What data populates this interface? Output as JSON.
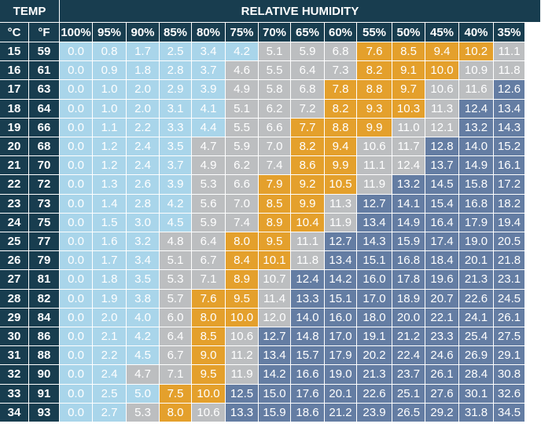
{
  "header": {
    "temp_label": "TEMP",
    "humidity_label": "RELATIVE HUMIDITY"
  },
  "colors": {
    "header": "#183d4f",
    "light_blue": "#a9d5ea",
    "gray": "#bcbec0",
    "orange": "#e4a02c",
    "slate_blue": "#647da3",
    "text": "#ffffff"
  },
  "chart_data": {
    "type": "table",
    "column_headers": [
      "°C",
      "°F",
      "100%",
      "95%",
      "90%",
      "85%",
      "80%",
      "75%",
      "70%",
      "65%",
      "60%",
      "55%",
      "50%",
      "45%",
      "40%",
      "35%"
    ],
    "rows": [
      {
        "c": "15",
        "f": "59",
        "values": [
          "0.0",
          "0.8",
          "1.7",
          "2.5",
          "3.4",
          "4.2",
          "5.1",
          "5.9",
          "6.8",
          "7.6",
          "8.5",
          "9.4",
          "10.2",
          "11.1"
        ],
        "colors": "LLLLLLGGGOOOOG"
      },
      {
        "c": "16",
        "f": "61",
        "values": [
          "0.0",
          "0.9",
          "1.8",
          "2.8",
          "3.7",
          "4.6",
          "5.5",
          "6.4",
          "7.3",
          "8.2",
          "9.1",
          "10.0",
          "10.9",
          "11.8"
        ],
        "colors": "LLLLLGGGGOOOGG"
      },
      {
        "c": "17",
        "f": "63",
        "values": [
          "0.0",
          "1.0",
          "2.0",
          "2.9",
          "3.9",
          "4.9",
          "5.8",
          "6.8",
          "7.8",
          "8.8",
          "9.7",
          "10.6",
          "11.6",
          "12.6"
        ],
        "colors": "LLLLLGGGOOOGGS"
      },
      {
        "c": "18",
        "f": "64",
        "values": [
          "0.0",
          "1.0",
          "2.0",
          "3.1",
          "4.1",
          "5.1",
          "6.2",
          "7.2",
          "8.2",
          "9.3",
          "10.3",
          "11.3",
          "12.4",
          "13.4"
        ],
        "colors": "LLLLLGGGOOOGSS"
      },
      {
        "c": "19",
        "f": "66",
        "values": [
          "0.0",
          "1.1",
          "2.2",
          "3.3",
          "4.4",
          "5.5",
          "6.6",
          "7.7",
          "8.8",
          "9.9",
          "11.0",
          "12.1",
          "13.2",
          "14.3"
        ],
        "colors": "LLLLLGGOOOGGSS"
      },
      {
        "c": "20",
        "f": "68",
        "values": [
          "0.0",
          "1.2",
          "2.4",
          "3.5",
          "4.7",
          "5.9",
          "7.0",
          "8.2",
          "9.4",
          "10.6",
          "11.7",
          "12.8",
          "14.0",
          "15.2"
        ],
        "colors": "LLLLGGGOOGGSSS"
      },
      {
        "c": "21",
        "f": "70",
        "values": [
          "0.0",
          "1.2",
          "2.4",
          "3.7",
          "4.9",
          "6.2",
          "7.4",
          "8.6",
          "9.9",
          "11.1",
          "12.4",
          "13.7",
          "14.9",
          "16.1"
        ],
        "colors": "LLLLGGGOOGGSSS"
      },
      {
        "c": "22",
        "f": "72",
        "values": [
          "0.0",
          "1.3",
          "2.6",
          "3.9",
          "5.3",
          "6.6",
          "7.9",
          "9.2",
          "10.5",
          "11.9",
          "13.2",
          "14.5",
          "15.8",
          "17.2"
        ],
        "colors": "LLLLGGOOOGSSSS"
      },
      {
        "c": "23",
        "f": "73",
        "values": [
          "0.0",
          "1.4",
          "2.8",
          "4.2",
          "5.6",
          "7.0",
          "8.5",
          "9.9",
          "11.3",
          "12.7",
          "14.1",
          "15.4",
          "16.8",
          "18.2"
        ],
        "colors": "LLLLGGOOGSSSSS"
      },
      {
        "c": "24",
        "f": "75",
        "values": [
          "0.0",
          "1.5",
          "3.0",
          "4.5",
          "5.9",
          "7.4",
          "8.9",
          "10.4",
          "11.9",
          "13.4",
          "14.9",
          "16.4",
          "17.9",
          "19.4"
        ],
        "colors": "LLLLGGOOGSSSSS"
      },
      {
        "c": "25",
        "f": "77",
        "values": [
          "0.0",
          "1.6",
          "3.2",
          "4.8",
          "6.4",
          "8.0",
          "9.5",
          "11.1",
          "12.7",
          "14.3",
          "15.9",
          "17.4",
          "19.0",
          "20.5"
        ],
        "colors": "LLLGGOOGSSSSSS"
      },
      {
        "c": "26",
        "f": "79",
        "values": [
          "0.0",
          "1.7",
          "3.4",
          "5.1",
          "6.7",
          "8.4",
          "10.1",
          "11.8",
          "13.4",
          "15.1",
          "16.8",
          "18.4",
          "20.1",
          "21.8"
        ],
        "colors": "LLLGGOOGSSSSSS"
      },
      {
        "c": "27",
        "f": "81",
        "values": [
          "0.0",
          "1.8",
          "3.5",
          "5.3",
          "7.1",
          "8.9",
          "10.7",
          "12.4",
          "14.2",
          "16.0",
          "17.8",
          "19.6",
          "21.3",
          "23.1"
        ],
        "colors": "LLLGGOGSSSSSSS"
      },
      {
        "c": "28",
        "f": "82",
        "values": [
          "0.0",
          "1.9",
          "3.8",
          "5.7",
          "7.6",
          "9.5",
          "11.4",
          "13.3",
          "15.1",
          "17.0",
          "18.9",
          "20.7",
          "22.6",
          "24.5"
        ],
        "colors": "LLLGOOGSSSSSSS"
      },
      {
        "c": "29",
        "f": "84",
        "values": [
          "0.0",
          "2.0",
          "4.0",
          "6.0",
          "8.0",
          "10.0",
          "12.0",
          "14.0",
          "16.0",
          "18.0",
          "20.0",
          "22.1",
          "24.1",
          "26.1"
        ],
        "colors": "LLLGOOGSSSSSSS"
      },
      {
        "c": "30",
        "f": "86",
        "values": [
          "0.0",
          "2.1",
          "4.2",
          "6.4",
          "8.5",
          "10.6",
          "12.7",
          "14.8",
          "17.0",
          "19.1",
          "21.2",
          "23.3",
          "25.4",
          "27.5"
        ],
        "colors": "LLLGOGSSSSSSSS"
      },
      {
        "c": "31",
        "f": "88",
        "values": [
          "0.0",
          "2.2",
          "4.5",
          "6.7",
          "9.0",
          "11.2",
          "13.4",
          "15.7",
          "17.9",
          "20.2",
          "22.4",
          "24.6",
          "26.9",
          "29.1"
        ],
        "colors": "LLLGOGSSSSSSSS"
      },
      {
        "c": "32",
        "f": "90",
        "values": [
          "0.0",
          "2.4",
          "4.7",
          "7.1",
          "9.5",
          "11.9",
          "14.2",
          "16.6",
          "19.0",
          "21.3",
          "23.7",
          "26.1",
          "28.4",
          "30.8"
        ],
        "colors": "LLGGOGSSSSSSSS"
      },
      {
        "c": "33",
        "f": "91",
        "values": [
          "0.0",
          "2.5",
          "5.0",
          "7.5",
          "10.0",
          "12.5",
          "15.0",
          "17.6",
          "20.1",
          "22.6",
          "25.1",
          "27.6",
          "30.1",
          "32.6"
        ],
        "colors": "LLLOOSSSSSSSSS"
      },
      {
        "c": "34",
        "f": "93",
        "values": [
          "0.0",
          "2.7",
          "5.3",
          "8.0",
          "10.6",
          "13.3",
          "15.9",
          "18.6",
          "21.2",
          "23.9",
          "26.5",
          "29.2",
          "31.8",
          "34.5"
        ],
        "colors": "LLGOGSSSSSSSSS"
      }
    ]
  }
}
